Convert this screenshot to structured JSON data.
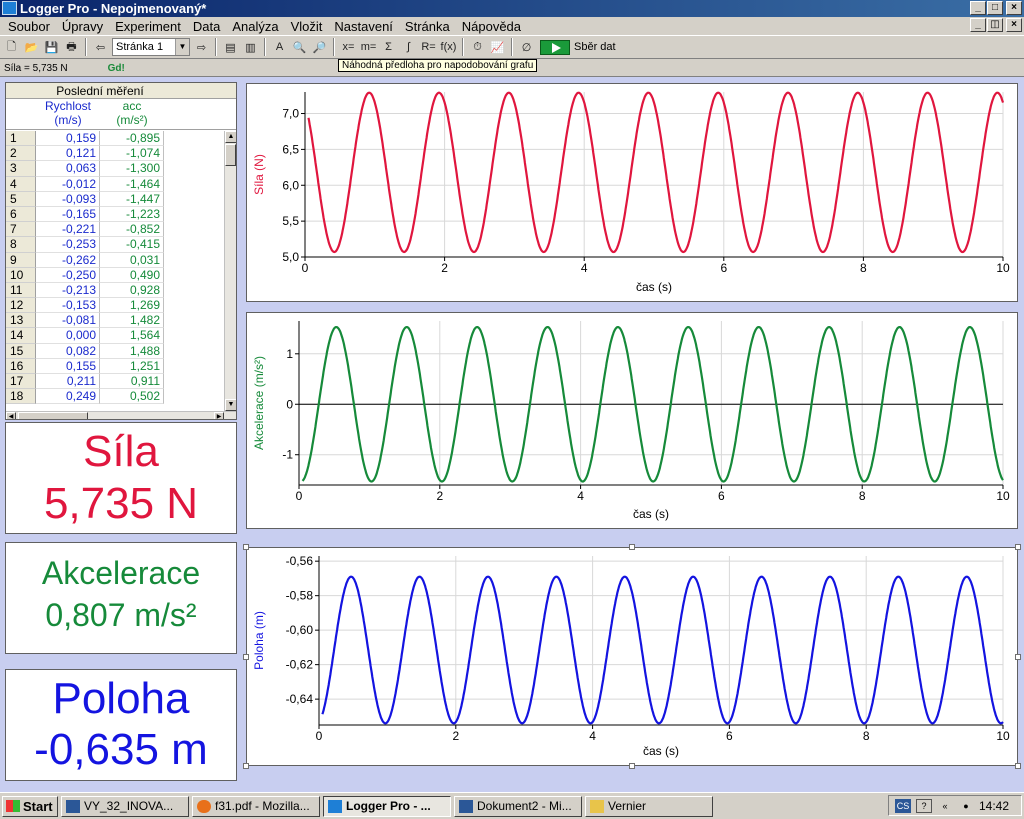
{
  "window": {
    "title": "Logger Pro - Nepojmenovaný*"
  },
  "menu": [
    "Soubor",
    "Úpravy",
    "Experiment",
    "Data",
    "Analýza",
    "Vložit",
    "Nastavení",
    "Stránka",
    "Nápověda"
  ],
  "toolbar": {
    "page_select": "Stránka 1",
    "collect_label": "Sběr dat",
    "tooltip": "Náhodná předloha pro napodobování grafu"
  },
  "status": {
    "reading": "Síla = 5,735 N",
    "gd": "Gd!"
  },
  "table": {
    "title": "Poslední měření",
    "columns": [
      {
        "name": "Rychlost",
        "unit": "(m/s)"
      },
      {
        "name": "acc",
        "unit": "(m/s²)"
      }
    ],
    "rows": [
      [
        "1",
        "0,159",
        "-0,895"
      ],
      [
        "2",
        "0,121",
        "-1,074"
      ],
      [
        "3",
        "0,063",
        "-1,300"
      ],
      [
        "4",
        "-0,012",
        "-1,464"
      ],
      [
        "5",
        "-0,093",
        "-1,447"
      ],
      [
        "6",
        "-0,165",
        "-1,223"
      ],
      [
        "7",
        "-0,221",
        "-0,852"
      ],
      [
        "8",
        "-0,253",
        "-0,415"
      ],
      [
        "9",
        "-0,262",
        "0,031"
      ],
      [
        "10",
        "-0,250",
        "0,490"
      ],
      [
        "11",
        "-0,213",
        "0,928"
      ],
      [
        "12",
        "-0,153",
        "1,269"
      ],
      [
        "13",
        "-0,081",
        "1,482"
      ],
      [
        "14",
        "0,000",
        "1,564"
      ],
      [
        "15",
        "0,082",
        "1,488"
      ],
      [
        "16",
        "0,155",
        "1,251"
      ],
      [
        "17",
        "0,211",
        "0,911"
      ],
      [
        "18",
        "0,249",
        "0,502"
      ]
    ]
  },
  "meters": {
    "sila": {
      "label": "Síla",
      "value": "5,735 N"
    },
    "acc": {
      "label": "Akcelerace",
      "value": "0,807 m/s²"
    },
    "pos": {
      "label": "Poloha",
      "value": "-0,635 m"
    }
  },
  "colors": {
    "sila": "#e0163e",
    "acc": "#168a3a",
    "pos": "#1414e0"
  },
  "chart_data": [
    {
      "type": "line",
      "ylabel": "Síla (N)",
      "xlabel": "čas (s)",
      "xlim": [
        0,
        10
      ],
      "ylim": [
        5.0,
        7.3
      ],
      "xticks": [
        "0",
        "2",
        "4",
        "6",
        "8",
        "10"
      ],
      "yticks": [
        "5,0",
        "5,5",
        "6,0",
        "6,5",
        "7,0"
      ],
      "yticks_values": [
        5.0,
        5.5,
        6.0,
        6.5,
        7.0
      ],
      "series": [
        {
          "name": "Síla",
          "wave": {
            "offset": 6.18,
            "amplitude": 1.11,
            "period": 1.0,
            "phase": 0.67
          },
          "x_start": 0.05,
          "x_end": 10
        }
      ]
    },
    {
      "type": "line",
      "ylabel": "Akcelerace (m/s²)",
      "xlabel": "čas (s)",
      "xlim": [
        0,
        10
      ],
      "ylim": [
        -1.6,
        1.65
      ],
      "xticks": [
        "0",
        "2",
        "4",
        "6",
        "8",
        "10"
      ],
      "yticks": [
        "-1",
        "0",
        "1"
      ],
      "yticks_values": [
        -1,
        0,
        1
      ],
      "series": [
        {
          "name": "acc",
          "wave": {
            "offset": 0,
            "amplitude": 1.53,
            "period": 1.0,
            "phase": 1.28
          },
          "x_start": 0.05,
          "x_end": 10
        }
      ]
    },
    {
      "type": "line",
      "ylabel": "Poloha (m)",
      "xlabel": "čas (s)",
      "xlim": [
        0,
        10
      ],
      "ylim": [
        -0.655,
        -0.557
      ],
      "xticks": [
        "0",
        "2",
        "4",
        "6",
        "8",
        "10"
      ],
      "yticks": [
        "-0,56",
        "-0,58",
        "-0,60",
        "-0,62",
        "-0,64"
      ],
      "yticks_values": [
        -0.56,
        -0.58,
        -0.6,
        -0.62,
        -0.64
      ],
      "series": [
        {
          "name": "Poloha",
          "wave": {
            "offset": -0.6115,
            "amplitude": 0.0425,
            "period": 1.0,
            "phase": 0.22
          },
          "x_start": 0.05,
          "x_end": 10
        }
      ]
    }
  ],
  "taskbar": {
    "start": "Start",
    "tasks": [
      "VY_32_INOVA...",
      "f31.pdf - Mozilla...",
      "Logger Pro - ...",
      "Dokument2 - Mi...",
      "Vernier"
    ],
    "lang": "CS",
    "clock": "14:42"
  }
}
